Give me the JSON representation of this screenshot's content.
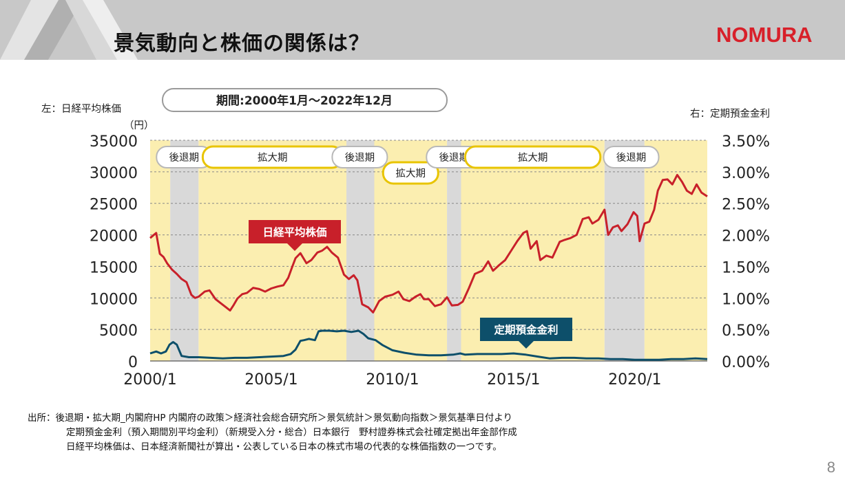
{
  "header": {
    "title": "景気動向と株価の関係は？",
    "logo": "NOMURA",
    "bar_color": "#c8c8c8",
    "logo_color": "#d8202a"
  },
  "chart_data": {
    "type": "line",
    "period_label": "期間:2000年1月～2022年12月",
    "left_axis": {
      "label": "左：日経平均株価",
      "unit": "（円）",
      "ylim": [
        0,
        35000
      ],
      "ticks": [
        "0",
        "5000",
        "10000",
        "15000",
        "20000",
        "25000",
        "30000",
        "35000"
      ]
    },
    "right_axis": {
      "label": "右：定期預金金利",
      "ylim": [
        0,
        3.5
      ],
      "ticks": [
        "0.00%",
        "0.50%",
        "1.00%",
        "1.50%",
        "2.00%",
        "2.50%",
        "3.00%",
        "3.50%"
      ]
    },
    "x_axis": {
      "xlim": [
        2000.0,
        2022.99
      ],
      "ticks": [
        "2000/1",
        "2005/1",
        "2010/1",
        "2015/1",
        "2020/1"
      ],
      "tick_values": [
        2000,
        2005,
        2010,
        2015,
        2020
      ]
    },
    "phases": [
      {
        "label": "拡大期",
        "type": "expansion",
        "start": 2000.0,
        "end": 2000.83
      },
      {
        "label": "後退期",
        "type": "recession",
        "start": 2000.83,
        "end": 2002.0
      },
      {
        "label": "拡大期",
        "type": "expansion",
        "start": 2002.0,
        "end": 2008.1
      },
      {
        "label": "後退期",
        "type": "recession",
        "start": 2008.1,
        "end": 2009.25
      },
      {
        "label": "拡大期",
        "type": "expansion",
        "start": 2009.25,
        "end": 2012.25
      },
      {
        "label": "後退期",
        "type": "recession",
        "start": 2012.25,
        "end": 2012.83
      },
      {
        "label": "拡大期",
        "type": "expansion",
        "start": 2012.83,
        "end": 2018.75
      },
      {
        "label": "後退期",
        "type": "recession",
        "start": 2018.75,
        "end": 2020.4
      },
      {
        "label": "拡大期",
        "type": "expansion",
        "start": 2020.4,
        "end": 2022.99
      }
    ],
    "phase_labels": [
      {
        "label": "後退期",
        "type": "recession",
        "at": 2001.4,
        "row": 0
      },
      {
        "label": "拡大期",
        "type": "expansion",
        "at": 2005.0,
        "row": 0
      },
      {
        "label": "後退期",
        "type": "recession",
        "at": 2008.65,
        "row": 0
      },
      {
        "label": "拡大期",
        "type": "expansion",
        "at": 2010.75,
        "row": 1
      },
      {
        "label": "後退期",
        "type": "recession",
        "at": 2012.54,
        "row": 0
      },
      {
        "label": "拡大期",
        "type": "expansion",
        "at": 2015.8,
        "row": 0
      },
      {
        "label": "後退期",
        "type": "recession",
        "at": 2019.85,
        "row": 0
      }
    ],
    "series": [
      {
        "name": "日経平均株価",
        "axis": "left",
        "color": "#c8202a",
        "points": [
          [
            2000.0,
            19500
          ],
          [
            2000.25,
            20300
          ],
          [
            2000.4,
            17000
          ],
          [
            2000.55,
            16500
          ],
          [
            2000.7,
            15500
          ],
          [
            2000.9,
            14500
          ],
          [
            2001.1,
            13800
          ],
          [
            2001.3,
            13000
          ],
          [
            2001.5,
            12500
          ],
          [
            2001.7,
            10500
          ],
          [
            2001.85,
            10000
          ],
          [
            2002.0,
            10200
          ],
          [
            2002.25,
            11000
          ],
          [
            2002.45,
            11200
          ],
          [
            2002.7,
            9800
          ],
          [
            2002.9,
            9200
          ],
          [
            2003.1,
            8600
          ],
          [
            2003.3,
            8000
          ],
          [
            2003.45,
            8900
          ],
          [
            2003.6,
            9900
          ],
          [
            2003.8,
            10600
          ],
          [
            2004.0,
            10800
          ],
          [
            2004.25,
            11600
          ],
          [
            2004.5,
            11400
          ],
          [
            2004.75,
            11000
          ],
          [
            2005.0,
            11500
          ],
          [
            2005.25,
            11800
          ],
          [
            2005.5,
            12000
          ],
          [
            2005.7,
            13200
          ],
          [
            2005.85,
            14800
          ],
          [
            2006.0,
            16300
          ],
          [
            2006.2,
            17100
          ],
          [
            2006.45,
            15500
          ],
          [
            2006.65,
            16000
          ],
          [
            2006.9,
            17200
          ],
          [
            2007.1,
            17500
          ],
          [
            2007.3,
            18100
          ],
          [
            2007.5,
            17200
          ],
          [
            2007.75,
            16400
          ],
          [
            2008.0,
            13700
          ],
          [
            2008.2,
            13000
          ],
          [
            2008.4,
            13600
          ],
          [
            2008.55,
            12800
          ],
          [
            2008.75,
            9000
          ],
          [
            2009.0,
            8500
          ],
          [
            2009.2,
            7700
          ],
          [
            2009.45,
            9500
          ],
          [
            2009.7,
            10200
          ],
          [
            2010.0,
            10500
          ],
          [
            2010.25,
            11000
          ],
          [
            2010.45,
            9800
          ],
          [
            2010.7,
            9500
          ],
          [
            2010.95,
            10200
          ],
          [
            2011.15,
            10600
          ],
          [
            2011.3,
            9800
          ],
          [
            2011.5,
            9800
          ],
          [
            2011.75,
            8700
          ],
          [
            2012.0,
            9000
          ],
          [
            2012.25,
            10100
          ],
          [
            2012.45,
            8800
          ],
          [
            2012.7,
            8900
          ],
          [
            2012.9,
            9400
          ],
          [
            2013.15,
            11500
          ],
          [
            2013.4,
            13800
          ],
          [
            2013.7,
            14300
          ],
          [
            2013.95,
            15800
          ],
          [
            2014.15,
            14300
          ],
          [
            2014.4,
            15200
          ],
          [
            2014.65,
            16000
          ],
          [
            2014.9,
            17500
          ],
          [
            2015.15,
            19000
          ],
          [
            2015.4,
            20300
          ],
          [
            2015.55,
            20600
          ],
          [
            2015.7,
            17800
          ],
          [
            2015.95,
            19000
          ],
          [
            2016.1,
            16000
          ],
          [
            2016.35,
            16700
          ],
          [
            2016.6,
            16400
          ],
          [
            2016.9,
            18900
          ],
          [
            2017.1,
            19200
          ],
          [
            2017.35,
            19500
          ],
          [
            2017.6,
            20000
          ],
          [
            2017.85,
            22500
          ],
          [
            2018.1,
            22800
          ],
          [
            2018.25,
            21800
          ],
          [
            2018.5,
            22400
          ],
          [
            2018.75,
            24000
          ],
          [
            2018.9,
            20000
          ],
          [
            2019.1,
            21200
          ],
          [
            2019.3,
            21500
          ],
          [
            2019.45,
            20600
          ],
          [
            2019.7,
            21700
          ],
          [
            2019.95,
            23600
          ],
          [
            2020.1,
            23000
          ],
          [
            2020.2,
            19000
          ],
          [
            2020.4,
            21800
          ],
          [
            2020.6,
            22100
          ],
          [
            2020.8,
            24000
          ],
          [
            2020.95,
            27000
          ],
          [
            2021.15,
            28700
          ],
          [
            2021.35,
            28800
          ],
          [
            2021.55,
            28000
          ],
          [
            2021.75,
            29500
          ],
          [
            2021.95,
            28400
          ],
          [
            2022.15,
            27000
          ],
          [
            2022.35,
            26500
          ],
          [
            2022.55,
            28000
          ],
          [
            2022.75,
            26700
          ],
          [
            2022.99,
            26100
          ]
        ]
      },
      {
        "name": "定期預金金利",
        "axis": "right",
        "color": "#0d4f6a",
        "points": [
          [
            2000.0,
            0.12
          ],
          [
            2000.25,
            0.15
          ],
          [
            2000.45,
            0.12
          ],
          [
            2000.65,
            0.15
          ],
          [
            2000.8,
            0.26
          ],
          [
            2000.95,
            0.3
          ],
          [
            2001.1,
            0.26
          ],
          [
            2001.3,
            0.08
          ],
          [
            2001.6,
            0.06
          ],
          [
            2002.0,
            0.06
          ],
          [
            2002.5,
            0.05
          ],
          [
            2003.0,
            0.04
          ],
          [
            2003.5,
            0.05
          ],
          [
            2004.0,
            0.05
          ],
          [
            2004.5,
            0.06
          ],
          [
            2005.0,
            0.07
          ],
          [
            2005.5,
            0.08
          ],
          [
            2005.8,
            0.11
          ],
          [
            2006.0,
            0.18
          ],
          [
            2006.2,
            0.32
          ],
          [
            2006.35,
            0.33
          ],
          [
            2006.55,
            0.35
          ],
          [
            2006.8,
            0.33
          ],
          [
            2006.95,
            0.47
          ],
          [
            2007.1,
            0.48
          ],
          [
            2007.4,
            0.48
          ],
          [
            2007.7,
            0.47
          ],
          [
            2008.0,
            0.48
          ],
          [
            2008.3,
            0.46
          ],
          [
            2008.6,
            0.48
          ],
          [
            2008.8,
            0.43
          ],
          [
            2009.0,
            0.36
          ],
          [
            2009.3,
            0.33
          ],
          [
            2009.6,
            0.25
          ],
          [
            2010.0,
            0.17
          ],
          [
            2010.5,
            0.13
          ],
          [
            2011.0,
            0.1
          ],
          [
            2011.5,
            0.09
          ],
          [
            2012.0,
            0.09
          ],
          [
            2012.5,
            0.1
          ],
          [
            2012.8,
            0.12
          ],
          [
            2013.0,
            0.1
          ],
          [
            2013.5,
            0.11
          ],
          [
            2014.0,
            0.11
          ],
          [
            2014.5,
            0.11
          ],
          [
            2015.0,
            0.12
          ],
          [
            2015.5,
            0.1
          ],
          [
            2016.0,
            0.07
          ],
          [
            2016.5,
            0.04
          ],
          [
            2017.0,
            0.05
          ],
          [
            2017.5,
            0.05
          ],
          [
            2018.0,
            0.04
          ],
          [
            2018.5,
            0.04
          ],
          [
            2019.0,
            0.03
          ],
          [
            2019.5,
            0.03
          ],
          [
            2020.0,
            0.02
          ],
          [
            2020.5,
            0.02
          ],
          [
            2021.0,
            0.02
          ],
          [
            2021.5,
            0.03
          ],
          [
            2022.0,
            0.03
          ],
          [
            2022.5,
            0.04
          ],
          [
            2022.99,
            0.03
          ]
        ]
      }
    ],
    "callouts": [
      {
        "series": "日経平均株価",
        "label": "日経平均株価",
        "color": "#c8202a"
      },
      {
        "series": "定期預金金利",
        "label": "定期預金金利",
        "color": "#0d4f6a"
      }
    ],
    "colors": {
      "expansion": "#fbeeb0",
      "recession": "#d9d9d9",
      "expansion_border": "#e8c400",
      "recession_border": "#b8b8b8"
    }
  },
  "source": {
    "line1": "出所：後退期・拡大期_内閣府HP 内閣府の政策＞経済社会総合研究所＞景気統計＞景気動向指数＞景気基準日付より",
    "line2": "定期預金金利（預入期間別平均金利）（新規受入分・総合）日本銀行　野村證券株式会社確定拠出年金部作成",
    "line3": "日経平均株価は、日本経済新聞社が算出・公表している日本の株式市場の代表的な株価指数の一つです。"
  },
  "page_number": "8"
}
